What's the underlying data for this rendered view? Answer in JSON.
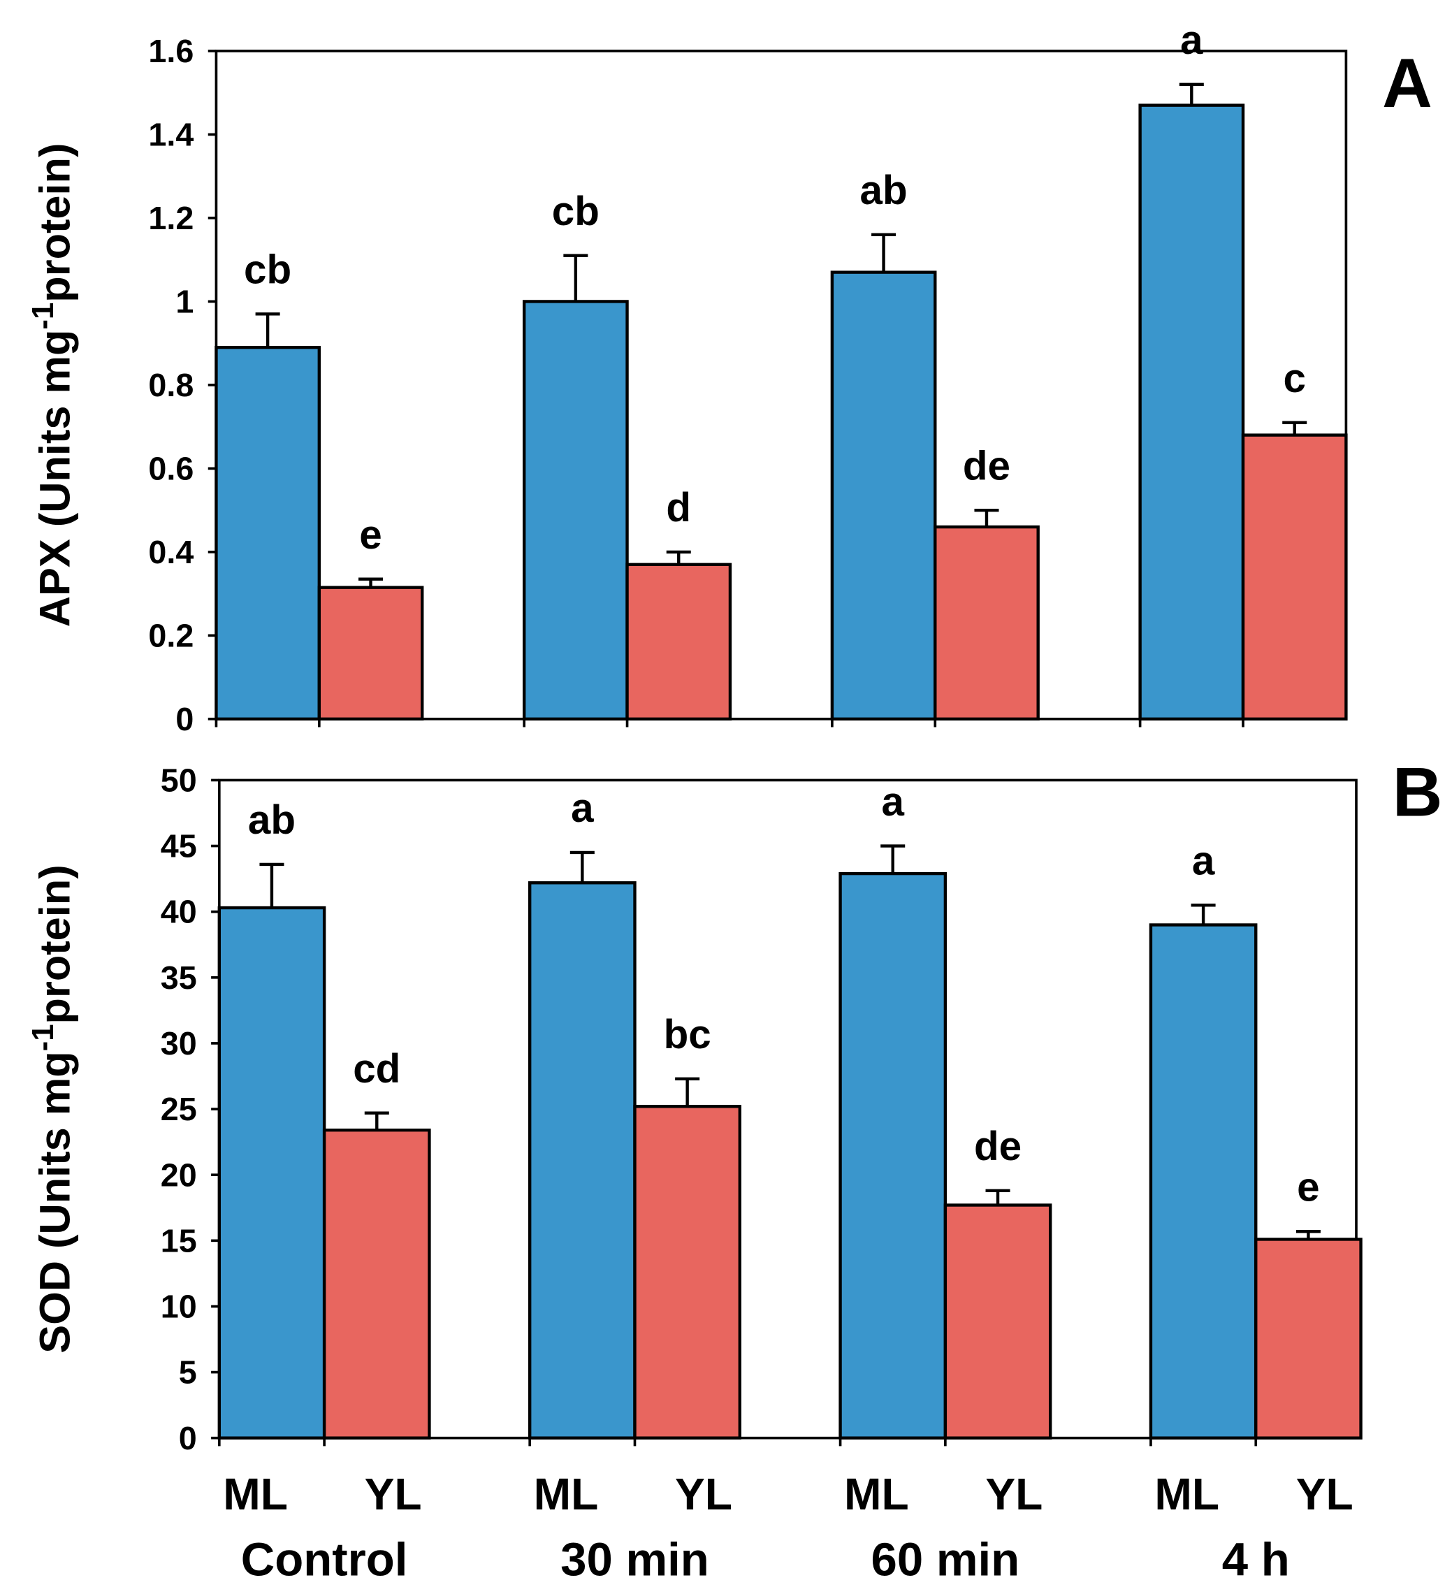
{
  "colors": {
    "ML": "#3A96CC",
    "YL": "#E8665F"
  },
  "x_series_labels": [
    "ML",
    "YL"
  ],
  "group_labels": [
    "Control",
    "30 min",
    "60 min",
    "4 h"
  ],
  "chart_data": [
    {
      "type": "bar",
      "panel_label": "A",
      "ylabel_main": "APX (Units mg",
      "ylabel_sup": "-1",
      "ylabel_end": "protein)",
      "ylim": [
        0,
        1.6
      ],
      "yticks": [
        0,
        0.2,
        0.4,
        0.6,
        0.8,
        1,
        1.2,
        1.4,
        1.6
      ],
      "ytick_labels": [
        "0",
        "0.2",
        "0.4",
        "0.6",
        "0.8",
        "1",
        "1.2",
        "1.4",
        "1.6"
      ],
      "categories": [
        "Control",
        "30 min",
        "60 min",
        "4 h"
      ],
      "series": [
        {
          "name": "ML",
          "values": [
            0.89,
            1.0,
            1.07,
            1.47
          ],
          "errors": [
            0.08,
            0.11,
            0.09,
            0.05
          ],
          "letters": [
            "cb",
            "cb",
            "ab",
            "a"
          ]
        },
        {
          "name": "YL",
          "values": [
            0.315,
            0.37,
            0.46,
            0.68
          ],
          "errors": [
            0.02,
            0.03,
            0.04,
            0.03
          ],
          "letters": [
            "e",
            "d",
            "de",
            "c"
          ]
        }
      ]
    },
    {
      "type": "bar",
      "panel_label": "B",
      "ylabel_main": "SOD (Units mg",
      "ylabel_sup": "-1",
      "ylabel_end": "protein)",
      "ylim": [
        0,
        50
      ],
      "yticks": [
        0,
        5,
        10,
        15,
        20,
        25,
        30,
        35,
        40,
        45,
        50
      ],
      "ytick_labels": [
        "0",
        "5",
        "10",
        "15",
        "20",
        "25",
        "30",
        "35",
        "40",
        "45",
        "50"
      ],
      "categories": [
        "Control",
        "30 min",
        "60 min",
        "4 h"
      ],
      "series": [
        {
          "name": "ML",
          "values": [
            40.3,
            42.2,
            42.9,
            39.0
          ],
          "errors": [
            3.3,
            2.3,
            2.1,
            1.5
          ],
          "letters": [
            "ab",
            "a",
            "a",
            "a"
          ]
        },
        {
          "name": "YL",
          "values": [
            23.4,
            25.2,
            17.7,
            15.1
          ],
          "errors": [
            1.3,
            2.1,
            1.1,
            0.6
          ],
          "letters": [
            "cd",
            "bc",
            "de",
            "e"
          ]
        }
      ]
    }
  ]
}
